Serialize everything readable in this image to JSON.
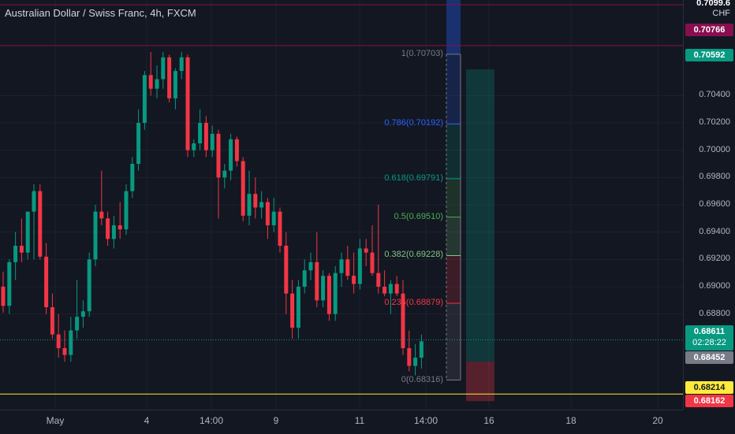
{
  "header": {
    "title": "Australian Dollar / Swiss Franc, 4h, FXCM"
  },
  "price_axis": {
    "ticks": [
      "0.70400",
      "0.70200",
      "0.70000",
      "0.69800",
      "0.69600",
      "0.69400",
      "0.69200",
      "0.69000",
      "0.68800"
    ],
    "currency": "CHF",
    "top_cut_label": "0.7099.6"
  },
  "price_tags": {
    "upper_line": {
      "value": "0.70766",
      "color": "#880e4f"
    },
    "take_profit": {
      "value": "0.70592",
      "color": "#089981"
    },
    "current": {
      "value": "0.68611",
      "countdown": "02:28:22",
      "color": "#089981"
    },
    "stop_zone": {
      "value": "0.68452",
      "color": "#787b86"
    },
    "yellow_line": {
      "value": "0.68214",
      "color": "#ffeb3b"
    },
    "stop_loss": {
      "value": "0.68162",
      "color": "#f23645"
    }
  },
  "time_axis": [
    "May",
    "4",
    "14:00",
    "9",
    "11",
    "14:00",
    "16",
    "18",
    "20"
  ],
  "fibonacci": {
    "levels": [
      {
        "label": "1(0.70703)",
        "price": 0.70703,
        "color": "#787b86"
      },
      {
        "label": "0.786(0.70192)",
        "price": 0.70192,
        "color": "#2962ff"
      },
      {
        "label": "0.618(0.69791)",
        "price": 0.69791,
        "color": "#089981"
      },
      {
        "label": "0.5(0.69510)",
        "price": 0.6951,
        "color": "#4caf50"
      },
      {
        "label": "0.382(0.69228)",
        "price": 0.69228,
        "color": "#81c784"
      },
      {
        "label": "0.236(0.68879)",
        "price": 0.68879,
        "color": "#f23645"
      },
      {
        "label": "0(0.68316)",
        "price": 0.68316,
        "color": "#787b86"
      }
    ]
  },
  "chart_data": {
    "type": "candlestick",
    "title": "Australian Dollar / Swiss Franc, 4h, FXCM",
    "y_range": [
      0.681,
      0.711
    ],
    "candles": [
      {
        "o": 0.69,
        "h": 0.6911,
        "l": 0.6881,
        "c": 0.6886
      },
      {
        "o": 0.6886,
        "h": 0.692,
        "l": 0.688,
        "c": 0.6918
      },
      {
        "o": 0.6918,
        "h": 0.694,
        "l": 0.6905,
        "c": 0.693
      },
      {
        "o": 0.693,
        "h": 0.695,
        "l": 0.6918,
        "c": 0.6925
      },
      {
        "o": 0.6925,
        "h": 0.6955,
        "l": 0.692,
        "c": 0.6955
      },
      {
        "o": 0.6955,
        "h": 0.6975,
        "l": 0.692,
        "c": 0.697
      },
      {
        "o": 0.697,
        "h": 0.6975,
        "l": 0.692,
        "c": 0.6922
      },
      {
        "o": 0.6922,
        "h": 0.6932,
        "l": 0.688,
        "c": 0.6885
      },
      {
        "o": 0.6885,
        "h": 0.6895,
        "l": 0.6862,
        "c": 0.6865
      },
      {
        "o": 0.6865,
        "h": 0.688,
        "l": 0.6848,
        "c": 0.6855
      },
      {
        "o": 0.6855,
        "h": 0.6868,
        "l": 0.6845,
        "c": 0.685
      },
      {
        "o": 0.685,
        "h": 0.6878,
        "l": 0.6845,
        "c": 0.6868
      },
      {
        "o": 0.6868,
        "h": 0.6905,
        "l": 0.6862,
        "c": 0.6878
      },
      {
        "o": 0.6878,
        "h": 0.689,
        "l": 0.687,
        "c": 0.6882
      },
      {
        "o": 0.6882,
        "h": 0.6925,
        "l": 0.6878,
        "c": 0.692
      },
      {
        "o": 0.692,
        "h": 0.696,
        "l": 0.6915,
        "c": 0.6955
      },
      {
        "o": 0.6955,
        "h": 0.6985,
        "l": 0.6945,
        "c": 0.695
      },
      {
        "o": 0.695,
        "h": 0.6955,
        "l": 0.693,
        "c": 0.6935
      },
      {
        "o": 0.6935,
        "h": 0.6952,
        "l": 0.6928,
        "c": 0.6945
      },
      {
        "o": 0.6945,
        "h": 0.6962,
        "l": 0.6935,
        "c": 0.6942
      },
      {
        "o": 0.6942,
        "h": 0.6975,
        "l": 0.6938,
        "c": 0.697
      },
      {
        "o": 0.697,
        "h": 0.6995,
        "l": 0.6965,
        "c": 0.699
      },
      {
        "o": 0.699,
        "h": 0.703,
        "l": 0.6985,
        "c": 0.702
      },
      {
        "o": 0.702,
        "h": 0.7058,
        "l": 0.7015,
        "c": 0.7055
      },
      {
        "o": 0.7055,
        "h": 0.7072,
        "l": 0.704,
        "c": 0.7045
      },
      {
        "o": 0.7045,
        "h": 0.7062,
        "l": 0.7038,
        "c": 0.7052
      },
      {
        "o": 0.7052,
        "h": 0.7072,
        "l": 0.7045,
        "c": 0.7068
      },
      {
        "o": 0.7068,
        "h": 0.707,
        "l": 0.7035,
        "c": 0.7038
      },
      {
        "o": 0.7038,
        "h": 0.706,
        "l": 0.703,
        "c": 0.7058
      },
      {
        "o": 0.7058,
        "h": 0.7072,
        "l": 0.7052,
        "c": 0.7068
      },
      {
        "o": 0.7068,
        "h": 0.707,
        "l": 0.6995,
        "c": 0.7
      },
      {
        "o": 0.7,
        "h": 0.7008,
        "l": 0.6995,
        "c": 0.7005
      },
      {
        "o": 0.7005,
        "h": 0.703,
        "l": 0.7,
        "c": 0.702
      },
      {
        "o": 0.702,
        "h": 0.7025,
        "l": 0.6995,
        "c": 0.7
      },
      {
        "o": 0.7,
        "h": 0.7018,
        "l": 0.6995,
        "c": 0.7012
      },
      {
        "o": 0.7012,
        "h": 0.7015,
        "l": 0.695,
        "c": 0.698
      },
      {
        "o": 0.698,
        "h": 0.699,
        "l": 0.6972,
        "c": 0.6985
      },
      {
        "o": 0.6985,
        "h": 0.7012,
        "l": 0.6978,
        "c": 0.7008
      },
      {
        "o": 0.7008,
        "h": 0.701,
        "l": 0.6988,
        "c": 0.6992
      },
      {
        "o": 0.6992,
        "h": 0.6995,
        "l": 0.6948,
        "c": 0.6952
      },
      {
        "o": 0.6952,
        "h": 0.6985,
        "l": 0.6945,
        "c": 0.6968
      },
      {
        "o": 0.6968,
        "h": 0.698,
        "l": 0.695,
        "c": 0.6958
      },
      {
        "o": 0.6958,
        "h": 0.697,
        "l": 0.695,
        "c": 0.6962
      },
      {
        "o": 0.6962,
        "h": 0.6965,
        "l": 0.6935,
        "c": 0.6945
      },
      {
        "o": 0.6945,
        "h": 0.6965,
        "l": 0.694,
        "c": 0.6955
      },
      {
        "o": 0.6955,
        "h": 0.6958,
        "l": 0.6925,
        "c": 0.693
      },
      {
        "o": 0.693,
        "h": 0.694,
        "l": 0.688,
        "c": 0.6895
      },
      {
        "o": 0.6895,
        "h": 0.6905,
        "l": 0.6862,
        "c": 0.687
      },
      {
        "o": 0.687,
        "h": 0.6905,
        "l": 0.6862,
        "c": 0.69
      },
      {
        "o": 0.69,
        "h": 0.692,
        "l": 0.6895,
        "c": 0.6912
      },
      {
        "o": 0.6912,
        "h": 0.6925,
        "l": 0.6905,
        "c": 0.6918
      },
      {
        "o": 0.6918,
        "h": 0.694,
        "l": 0.6885,
        "c": 0.689
      },
      {
        "o": 0.689,
        "h": 0.6912,
        "l": 0.6885,
        "c": 0.6908
      },
      {
        "o": 0.6908,
        "h": 0.691,
        "l": 0.6875,
        "c": 0.688
      },
      {
        "o": 0.688,
        "h": 0.6915,
        "l": 0.6875,
        "c": 0.691
      },
      {
        "o": 0.691,
        "h": 0.6925,
        "l": 0.69,
        "c": 0.692
      },
      {
        "o": 0.692,
        "h": 0.693,
        "l": 0.6905,
        "c": 0.6908
      },
      {
        "o": 0.6908,
        "h": 0.6925,
        "l": 0.6895,
        "c": 0.6902
      },
      {
        "o": 0.6902,
        "h": 0.6935,
        "l": 0.6898,
        "c": 0.6928
      },
      {
        "o": 0.6928,
        "h": 0.6935,
        "l": 0.6915,
        "c": 0.6925
      },
      {
        "o": 0.6925,
        "h": 0.6945,
        "l": 0.6908,
        "c": 0.691
      },
      {
        "o": 0.691,
        "h": 0.696,
        "l": 0.6895,
        "c": 0.69
      },
      {
        "o": 0.69,
        "h": 0.6912,
        "l": 0.6893,
        "c": 0.6895
      },
      {
        "o": 0.6895,
        "h": 0.6905,
        "l": 0.688,
        "c": 0.6902
      },
      {
        "o": 0.6902,
        "h": 0.6908,
        "l": 0.6893,
        "c": 0.6895
      },
      {
        "o": 0.6895,
        "h": 0.6905,
        "l": 0.685,
        "c": 0.6855
      },
      {
        "o": 0.6855,
        "h": 0.6868,
        "l": 0.6838,
        "c": 0.6842
      },
      {
        "o": 0.6842,
        "h": 0.6858,
        "l": 0.6835,
        "c": 0.6848
      },
      {
        "o": 0.6848,
        "h": 0.6865,
        "l": 0.684,
        "c": 0.686
      }
    ]
  }
}
